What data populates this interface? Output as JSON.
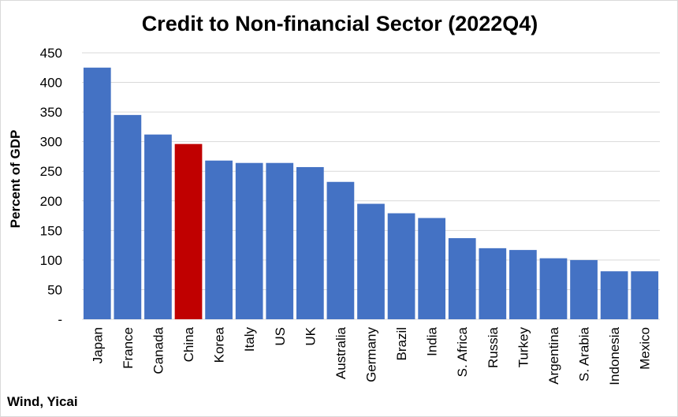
{
  "chart_data": {
    "type": "bar",
    "title": "Credit to Non-financial Sector (2022Q4)",
    "ylabel": "Percent of GDP",
    "xlabel": "",
    "ylim": [
      0,
      450
    ],
    "yticks": [
      "-",
      "50",
      "100",
      "150",
      "200",
      "250",
      "300",
      "350",
      "400",
      "450"
    ],
    "ytick_values": [
      0,
      50,
      100,
      150,
      200,
      250,
      300,
      350,
      400,
      450
    ],
    "grid": true,
    "categories": [
      "Japan",
      "France",
      "Canada",
      "China",
      "Korea",
      "Italy",
      "US",
      "UK",
      "Australia",
      "Germany",
      "Brazil",
      "India",
      "S. Africa",
      "Russia",
      "Turkey",
      "Argentina",
      "S. Arabia",
      "Indonesia",
      "Mexico"
    ],
    "values": [
      425,
      345,
      312,
      296,
      268,
      264,
      264,
      257,
      232,
      195,
      179,
      171,
      137,
      120,
      117,
      103,
      100,
      81,
      81
    ],
    "colors": {
      "default": "#4472c4",
      "highlight": "#c00000"
    },
    "highlight": "China",
    "source": "Wind, Yicai"
  }
}
